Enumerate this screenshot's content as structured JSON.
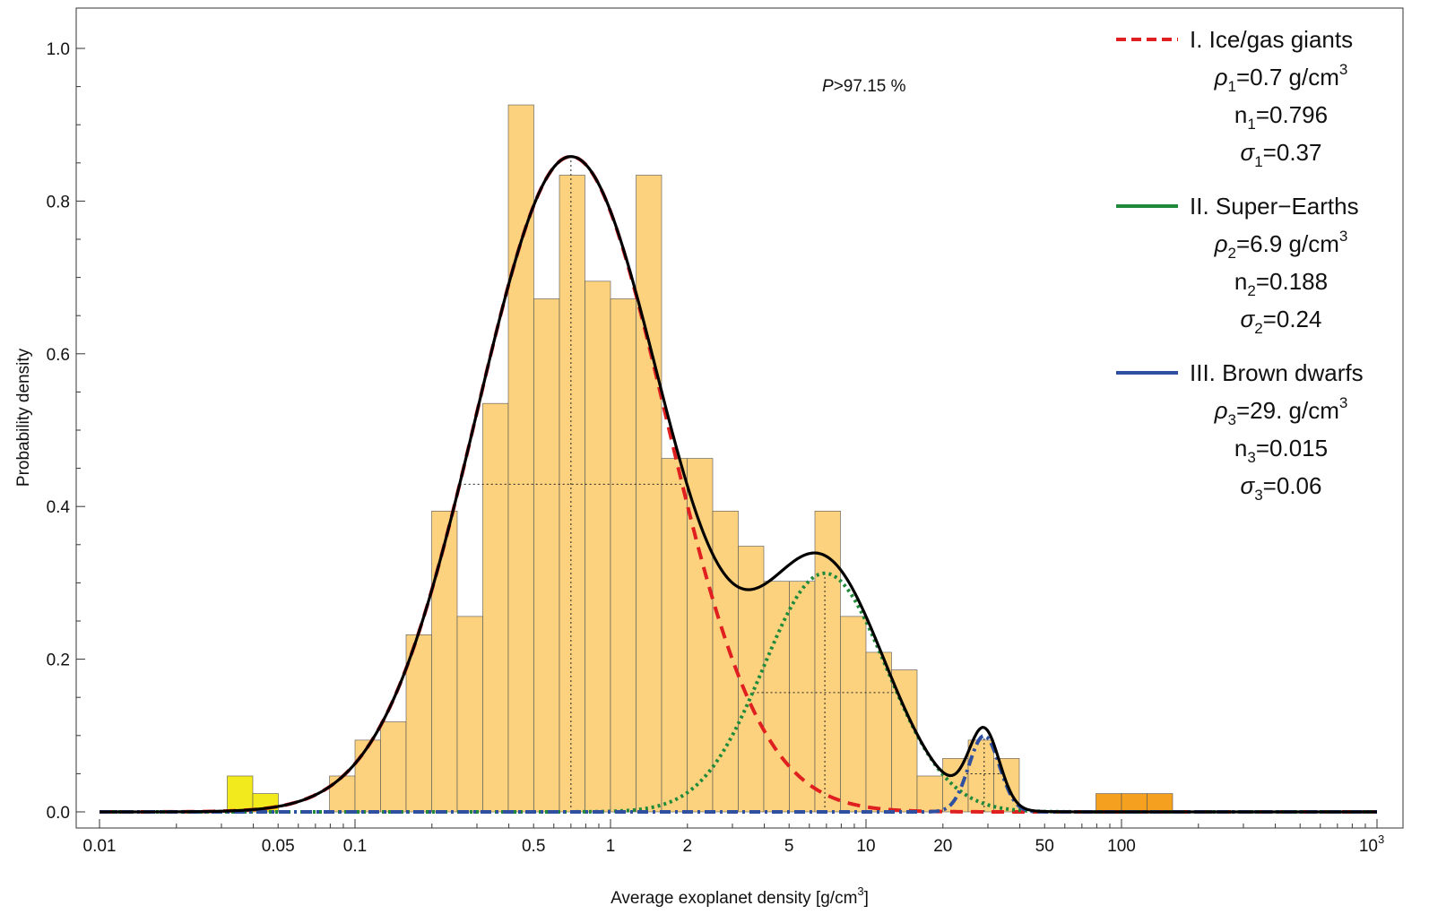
{
  "chart_data": {
    "type": "bar",
    "xlabel_main": "Average exoplanet density [g/cm",
    "xlabel_sup": "3",
    "xlabel_end": "]",
    "ylabel": "Probability density",
    "x_scale": "log",
    "xlim": [
      0.01,
      1000
    ],
    "ylim": [
      0,
      1.05
    ],
    "x_ticks": [
      {
        "value": 0.01,
        "label": "0.01"
      },
      {
        "value": 0.05,
        "label": "0.05"
      },
      {
        "value": 0.1,
        "label": "0.1"
      },
      {
        "value": 0.5,
        "label": "0.5"
      },
      {
        "value": 1,
        "label": "1"
      },
      {
        "value": 2,
        "label": "2"
      },
      {
        "value": 5,
        "label": "5"
      },
      {
        "value": 10,
        "label": "10"
      },
      {
        "value": 20,
        "label": "20"
      },
      {
        "value": 50,
        "label": "50"
      },
      {
        "value": 100,
        "label": "100"
      }
    ],
    "x_tick_last": {
      "value": 1000,
      "base": "10",
      "exp": "3"
    },
    "y_ticks": [
      {
        "value": 0.0,
        "label": "0.0"
      },
      {
        "value": 0.2,
        "label": "0.2"
      },
      {
        "value": 0.4,
        "label": "0.4"
      },
      {
        "value": 0.6,
        "label": "0.6"
      },
      {
        "value": 0.8,
        "label": "0.8"
      },
      {
        "value": 1.0,
        "label": "1.0"
      }
    ],
    "histogram": {
      "log10_bin_width": 0.1,
      "bins": [
        {
          "log10_x0": -1.5,
          "value": 0.047,
          "color": "#f2ea1c"
        },
        {
          "log10_x0": -1.4,
          "value": 0.024,
          "color": "#f2ea1c"
        },
        {
          "log10_x0": -1.1,
          "value": 0.047,
          "color": "#fdd27e"
        },
        {
          "log10_x0": -1.0,
          "value": 0.094,
          "color": "#fdd27e"
        },
        {
          "log10_x0": -0.9,
          "value": 0.118,
          "color": "#fdd27e"
        },
        {
          "log10_x0": -0.8,
          "value": 0.232,
          "color": "#fdd27e"
        },
        {
          "log10_x0": -0.7,
          "value": 0.394,
          "color": "#fdd27e"
        },
        {
          "log10_x0": -0.6,
          "value": 0.256,
          "color": "#fdd27e"
        },
        {
          "log10_x0": -0.5,
          "value": 0.535,
          "color": "#fdd27e"
        },
        {
          "log10_x0": -0.4,
          "value": 0.926,
          "color": "#fdd27e"
        },
        {
          "log10_x0": -0.3,
          "value": 0.672,
          "color": "#fdd27e"
        },
        {
          "log10_x0": -0.2,
          "value": 0.834,
          "color": "#fdd27e"
        },
        {
          "log10_x0": -0.1,
          "value": 0.695,
          "color": "#fdd27e"
        },
        {
          "log10_x0": 0.0,
          "value": 0.672,
          "color": "#fdd27e"
        },
        {
          "log10_x0": 0.1,
          "value": 0.834,
          "color": "#fdd27e"
        },
        {
          "log10_x0": 0.2,
          "value": 0.463,
          "color": "#fdd27e"
        },
        {
          "log10_x0": 0.3,
          "value": 0.463,
          "color": "#fdd27e"
        },
        {
          "log10_x0": 0.4,
          "value": 0.394,
          "color": "#fdd27e"
        },
        {
          "log10_x0": 0.5,
          "value": 0.348,
          "color": "#fdd27e"
        },
        {
          "log10_x0": 0.6,
          "value": 0.302,
          "color": "#fdd27e"
        },
        {
          "log10_x0": 0.7,
          "value": 0.302,
          "color": "#fdd27e"
        },
        {
          "log10_x0": 0.8,
          "value": 0.394,
          "color": "#fdd27e"
        },
        {
          "log10_x0": 0.9,
          "value": 0.256,
          "color": "#fdd27e"
        },
        {
          "log10_x0": 1.0,
          "value": 0.209,
          "color": "#fdd27e"
        },
        {
          "log10_x0": 1.1,
          "value": 0.186,
          "color": "#fdd27e"
        },
        {
          "log10_x0": 1.2,
          "value": 0.047,
          "color": "#fdd27e"
        },
        {
          "log10_x0": 1.3,
          "value": 0.07,
          "color": "#fdd27e"
        },
        {
          "log10_x0": 1.4,
          "value": 0.094,
          "color": "#fdd27e"
        },
        {
          "log10_x0": 1.5,
          "value": 0.07,
          "color": "#fdd27e"
        },
        {
          "log10_x0": 1.9,
          "value": 0.024,
          "color": "#f5a01e"
        },
        {
          "log10_x0": 2.0,
          "value": 0.024,
          "color": "#f5a01e"
        },
        {
          "log10_x0": 2.1,
          "value": 0.024,
          "color": "#f5a01e"
        }
      ]
    },
    "components": [
      {
        "name": "I. Ice/gas giants",
        "color": "#e02020",
        "dash": "dashed",
        "rho": 0.7,
        "n": 0.796,
        "sigma": 0.37,
        "params": [
          {
            "sym": "ρ",
            "sub": "1",
            "val": "=0.7 g/cm",
            "sup": "3"
          },
          {
            "sym": "n",
            "sub": "1",
            "val": "=0.796",
            "sup": ""
          },
          {
            "sym": "σ",
            "sub": "1",
            "val": "=0.37",
            "sup": ""
          }
        ]
      },
      {
        "name": "II. Super−Earths",
        "color": "#1f8a3a",
        "dash": "dotted",
        "rho": 6.9,
        "n": 0.188,
        "sigma": 0.24,
        "params": [
          {
            "sym": "ρ",
            "sub": "2",
            "val": "=6.9 g/cm",
            "sup": "3"
          },
          {
            "sym": "n",
            "sub": "2",
            "val": "=0.188",
            "sup": ""
          },
          {
            "sym": "σ",
            "sub": "2",
            "val": "=0.24",
            "sup": ""
          }
        ]
      },
      {
        "name": "III. Brown dwarfs",
        "color": "#2f4fa0",
        "dash": "dashdot",
        "rho": 29,
        "n": 0.015,
        "sigma": 0.06,
        "params": [
          {
            "sym": "ρ",
            "sub": "3",
            "val": "=29. g/cm",
            "sup": "3"
          },
          {
            "sym": "n",
            "sub": "3",
            "val": "=0.015",
            "sup": ""
          },
          {
            "sym": "σ",
            "sub": "3",
            "val": "=0.06",
            "sup": ""
          }
        ]
      }
    ],
    "total_curve_color": "#000000",
    "annotation": {
      "italic": "P",
      "rest": ">97.15 %"
    },
    "grid": false,
    "legend_position": "top-right"
  }
}
